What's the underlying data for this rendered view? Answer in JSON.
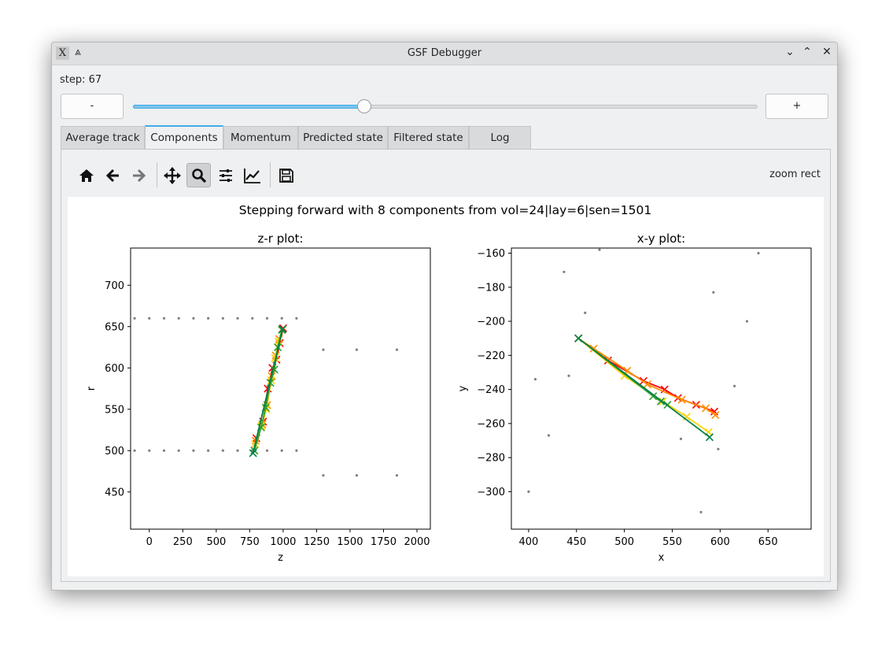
{
  "window": {
    "title": "GSF Debugger",
    "app_icon_glyph": "X",
    "controls": {
      "keep_above": "⩓",
      "minimize": "⌄",
      "maximize": "⌃",
      "close": "✕"
    }
  },
  "step": {
    "label": "step: 67",
    "value": 67,
    "fraction": 0.37,
    "minus_label": "-",
    "plus_label": "+"
  },
  "tabs": [
    {
      "label": "Average track",
      "active": false
    },
    {
      "label": "Components",
      "active": true
    },
    {
      "label": "Momentum",
      "active": false
    },
    {
      "label": "Predicted state",
      "active": false
    },
    {
      "label": "Filtered state",
      "active": false
    },
    {
      "label": "Log",
      "active": false
    }
  ],
  "toolbar": {
    "buttons": [
      "home-icon",
      "back-arrow-icon",
      "forward-arrow-icon",
      "pan-icon",
      "zoom-icon",
      "subplots-icon",
      "edit-axes-icon",
      "save-icon"
    ],
    "checked": "zoom-icon",
    "mode_text": "zoom rect"
  },
  "figure": {
    "suptitle": "Stepping forward with 8 components from vol=24|lay=6|sen=1501"
  },
  "chart_data": [
    {
      "type": "scatter",
      "title": "z-r plot:",
      "xlabel": "z",
      "ylabel": "r",
      "xlim": [
        -140,
        2100
      ],
      "ylim": [
        405,
        745
      ],
      "xticks": [
        0,
        250,
        500,
        750,
        1000,
        1250,
        1500,
        1750,
        2000
      ],
      "yticks": [
        450,
        500,
        550,
        600,
        650,
        700
      ],
      "surface_points": [
        [
          -110,
          660
        ],
        [
          0,
          660
        ],
        [
          110,
          660
        ],
        [
          220,
          660
        ],
        [
          330,
          660
        ],
        [
          440,
          660
        ],
        [
          550,
          660
        ],
        [
          660,
          660
        ],
        [
          770,
          660
        ],
        [
          880,
          660
        ],
        [
          990,
          660
        ],
        [
          1100,
          660
        ],
        [
          -110,
          500
        ],
        [
          0,
          500
        ],
        [
          110,
          500
        ],
        [
          220,
          500
        ],
        [
          330,
          500
        ],
        [
          440,
          500
        ],
        [
          550,
          500
        ],
        [
          660,
          500
        ],
        [
          770,
          500
        ],
        [
          880,
          500
        ],
        [
          990,
          500
        ],
        [
          1100,
          500
        ],
        [
          1300,
          622
        ],
        [
          1550,
          622
        ],
        [
          1850,
          622
        ],
        [
          1300,
          470
        ],
        [
          1550,
          470
        ],
        [
          1850,
          470
        ]
      ],
      "series": [
        {
          "color": "#ff0000",
          "points": [
            [
              800,
              515
            ],
            [
              850,
              535
            ],
            [
              885,
              575
            ],
            [
              920,
              600
            ],
            [
              950,
              610
            ],
            [
              975,
              630
            ],
            [
              1000,
              648
            ]
          ]
        },
        {
          "color": "#ff8c00",
          "points": [
            [
              795,
              512
            ],
            [
              845,
              532
            ],
            [
              880,
              555
            ],
            [
              915,
              590
            ],
            [
              945,
              615
            ],
            [
              970,
              635
            ],
            [
              995,
              647
            ]
          ]
        },
        {
          "color": "#ffd400",
          "points": [
            [
              790,
              508
            ],
            [
              840,
              530
            ],
            [
              875,
              550
            ],
            [
              910,
              585
            ],
            [
              940,
              612
            ],
            [
              965,
              632
            ],
            [
              993,
              646
            ]
          ]
        },
        {
          "color": "#2ca02c",
          "points": [
            [
              785,
              500
            ],
            [
              835,
              528
            ],
            [
              870,
              552
            ],
            [
              905,
              582
            ],
            [
              935,
              598
            ],
            [
              960,
              625
            ],
            [
              990,
              646
            ]
          ]
        },
        {
          "color": "#00804a",
          "points": [
            [
              775,
              497
            ],
            [
              996,
              647
            ]
          ]
        }
      ]
    },
    {
      "type": "scatter",
      "title": "x-y plot:",
      "xlabel": "x",
      "ylabel": "y",
      "xlim": [
        382,
        695
      ],
      "ylim": [
        -322,
        -157
      ],
      "xticks": [
        400,
        450,
        500,
        550,
        600,
        650
      ],
      "yticks": [
        -300,
        -280,
        -260,
        -240,
        -220,
        -200,
        -180,
        -160
      ],
      "surface_points": [
        [
          400,
          -300
        ],
        [
          407,
          -234
        ],
        [
          421,
          -267
        ],
        [
          437,
          -171
        ],
        [
          442,
          -232
        ],
        [
          459,
          -195
        ],
        [
          474,
          -158
        ],
        [
          559,
          -269
        ],
        [
          580,
          -312
        ],
        [
          593,
          -183
        ],
        [
          598,
          -275
        ],
        [
          615,
          -238
        ],
        [
          628,
          -200
        ],
        [
          640,
          -160
        ]
      ],
      "series": [
        {
          "color": "#ff0000",
          "points": [
            [
              452,
              -210
            ],
            [
              483,
              -223
            ],
            [
              520,
              -235
            ],
            [
              542,
              -240
            ],
            [
              556,
              -245
            ],
            [
              575,
              -249
            ],
            [
              594,
              -253
            ]
          ]
        },
        {
          "color": "#ff8c00",
          "points": [
            [
              452,
              -210
            ],
            [
              468,
              -216
            ],
            [
              503,
              -229
            ],
            [
              524,
              -237
            ],
            [
              560,
              -246
            ],
            [
              585,
              -251
            ],
            [
              595,
              -255
            ]
          ]
        },
        {
          "color": "#ffd400",
          "points": [
            [
              452,
              -210
            ],
            [
              500,
              -232
            ],
            [
              540,
              -247
            ],
            [
              565,
              -256
            ],
            [
              588,
              -265
            ]
          ]
        },
        {
          "color": "#2ca02c",
          "points": [
            [
              452,
              -210
            ],
            [
              530,
              -244
            ],
            [
              538,
              -247
            ],
            [
              545,
              -249
            ]
          ]
        },
        {
          "color": "#00804a",
          "points": [
            [
              452,
              -210
            ],
            [
              589,
              -268
            ]
          ]
        }
      ]
    }
  ]
}
